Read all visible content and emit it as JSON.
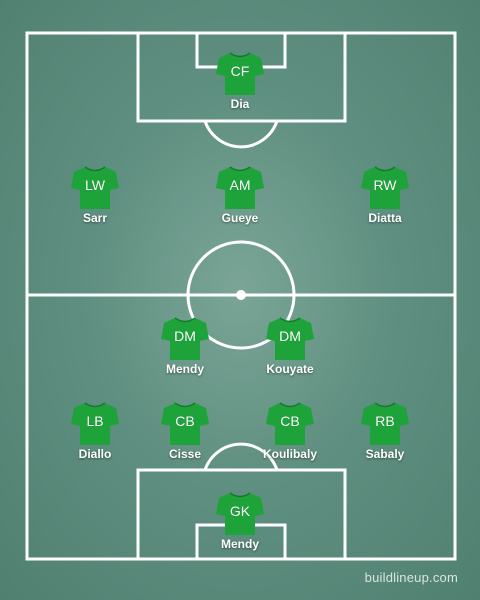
{
  "players": [
    {
      "pos": "CF",
      "name": "Dia"
    },
    {
      "pos": "LW",
      "name": "Sarr"
    },
    {
      "pos": "AM",
      "name": "Gueye"
    },
    {
      "pos": "RW",
      "name": "Diatta"
    },
    {
      "pos": "DM",
      "name": "Mendy"
    },
    {
      "pos": "DM",
      "name": "Kouyate"
    },
    {
      "pos": "LB",
      "name": "Diallo"
    },
    {
      "pos": "CB",
      "name": "Cisse"
    },
    {
      "pos": "CB",
      "name": "Koulibaly"
    },
    {
      "pos": "RB",
      "name": "Sabaly"
    },
    {
      "pos": "GK",
      "name": "Mendy"
    }
  ],
  "watermark": "buildlineup.com",
  "colors": {
    "shirt": "#1ea33a",
    "pitch": "#5f8f80",
    "lines": "#ffffff"
  }
}
